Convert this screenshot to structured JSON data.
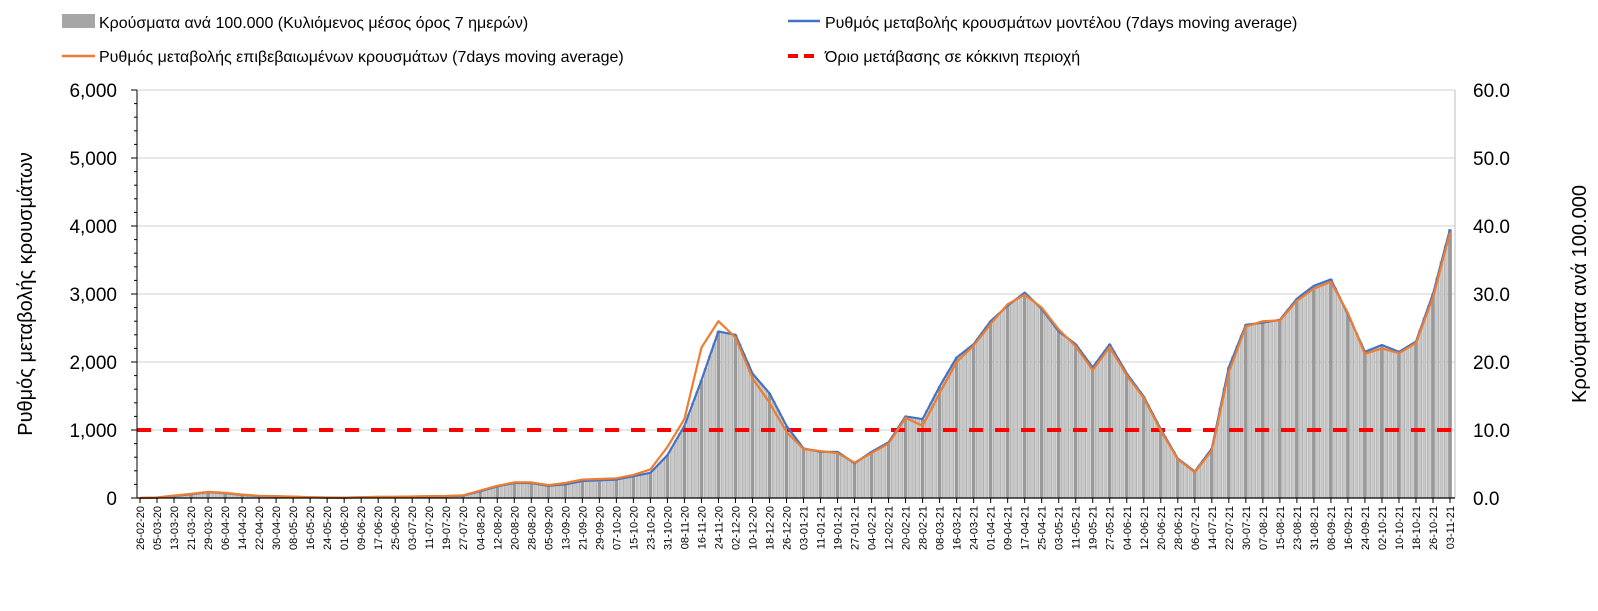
{
  "chart_data": {
    "type": "bar+line",
    "legend": {
      "placement": "top",
      "bars": "Κρούσματα ανά 100.000 (Κυλιόμενος μέσος όρος 7 ημερών)",
      "model": "Ρυθμός μεταβολής κρουσμάτων μοντέλου (7days moving average)",
      "confirmed": "Ρυθμός μεταβολής επιβεβαιωμένων κρουσμάτων (7days moving average)",
      "threshold": "Όριο μετάβασης σε κόκκινη περιοχή"
    },
    "ylabel_left": "Ρυθμός μεταβολής κρουσμάτων",
    "ylabel_right": "Κρούσματα ανά 100.000",
    "ylim_left": [
      0,
      6000
    ],
    "ylim_right": [
      0,
      60
    ],
    "yticks_left": [
      "0",
      "1,000",
      "2,000",
      "3,000",
      "4,000",
      "5,000",
      "6,000"
    ],
    "yticks_right": [
      "0.0",
      "10.0",
      "20.0",
      "30.0",
      "40.0",
      "50.0",
      "60.0"
    ],
    "threshold_value": 1000,
    "grid": true,
    "colors": {
      "bars": "#a6a6a6",
      "model": "#4472c4",
      "confirmed": "#ed7d31",
      "threshold": "#ff0000",
      "grid": "#d9d9d9"
    },
    "x": [
      "26-02-20",
      "05-03-20",
      "13-03-20",
      "21-03-20",
      "29-03-20",
      "06-04-20",
      "14-04-20",
      "22-04-20",
      "30-04-20",
      "08-05-20",
      "16-05-20",
      "24-05-20",
      "01-06-20",
      "09-06-20",
      "17-06-20",
      "25-06-20",
      "03-07-20",
      "11-07-20",
      "19-07-20",
      "27-07-20",
      "04-08-20",
      "12-08-20",
      "20-08-20",
      "28-08-20",
      "05-09-20",
      "13-09-20",
      "21-09-20",
      "29-09-20",
      "07-10-20",
      "15-10-20",
      "23-10-20",
      "31-10-20",
      "08-11-20",
      "16-11-20",
      "24-11-20",
      "02-12-20",
      "10-12-20",
      "18-12-20",
      "26-12-20",
      "03-01-21",
      "11-01-21",
      "19-01-21",
      "27-01-21",
      "04-02-21",
      "12-02-21",
      "20-02-21",
      "28-02-21",
      "08-03-21",
      "16-03-21",
      "24-03-21",
      "01-04-21",
      "09-04-21",
      "17-04-21",
      "25-04-21",
      "03-05-21",
      "11-05-21",
      "19-05-21",
      "27-05-21",
      "04-06-21",
      "12-06-21",
      "20-06-21",
      "28-06-21",
      "06-07-21",
      "14-07-21",
      "22-07-21",
      "30-07-21",
      "07-08-21",
      "15-08-21",
      "23-08-21",
      "31-08-21",
      "08-09-21",
      "16-09-21",
      "24-09-21",
      "02-10-21",
      "10-10-21",
      "18-10-21",
      "26-10-21",
      "03-11-21"
    ],
    "series": [
      {
        "name": "model",
        "axis": "left",
        "values": [
          0,
          5,
          30,
          55,
          85,
          70,
          45,
          30,
          25,
          18,
          10,
          6,
          5,
          10,
          15,
          15,
          20,
          25,
          28,
          35,
          100,
          170,
          220,
          220,
          180,
          200,
          250,
          260,
          270,
          320,
          370,
          630,
          1060,
          1730,
          2450,
          2400,
          1830,
          1540,
          1060,
          730,
          680,
          680,
          510,
          680,
          820,
          1200,
          1160,
          1640,
          2065,
          2260,
          2600,
          2830,
          3020,
          2780,
          2450,
          2260,
          1920,
          2260,
          1830,
          1490,
          1010,
          580,
          390,
          725,
          1920,
          2545,
          2580,
          2620,
          2930,
          3120,
          3215,
          2700,
          2150,
          2250,
          2150,
          2300,
          3000,
          3950
        ]
      },
      {
        "name": "confirmed",
        "axis": "left",
        "values": [
          0,
          8,
          35,
          60,
          90,
          75,
          50,
          32,
          26,
          20,
          12,
          8,
          6,
          12,
          16,
          18,
          22,
          26,
          30,
          40,
          110,
          180,
          230,
          230,
          190,
          220,
          270,
          280,
          290,
          340,
          420,
          750,
          1160,
          2210,
          2600,
          2360,
          1760,
          1400,
          970,
          720,
          690,
          660,
          520,
          660,
          800,
          1180,
          1060,
          1540,
          2000,
          2240,
          2560,
          2850,
          2990,
          2800,
          2480,
          2230,
          1880,
          2220,
          1800,
          1470,
          990,
          570,
          380,
          700,
          1850,
          2520,
          2600,
          2610,
          2900,
          3080,
          3180,
          2720,
          2120,
          2200,
          2130,
          2280,
          2950,
          3900
        ]
      },
      {
        "name": "bars",
        "axis": "right",
        "values": [
          0,
          0.1,
          0.3,
          0.6,
          0.9,
          0.7,
          0.5,
          0.3,
          0.3,
          0.2,
          0.1,
          0.1,
          0.1,
          0.1,
          0.2,
          0.2,
          0.2,
          0.3,
          0.3,
          0.4,
          1.0,
          1.7,
          2.2,
          2.2,
          1.8,
          2.0,
          2.5,
          2.6,
          2.7,
          3.2,
          3.7,
          6.3,
          10.6,
          17.3,
          24.5,
          24.0,
          18.3,
          15.4,
          10.6,
          7.3,
          6.8,
          6.8,
          5.1,
          6.8,
          8.2,
          12.0,
          11.6,
          16.4,
          20.7,
          22.6,
          26.0,
          28.3,
          30.2,
          27.8,
          24.5,
          22.6,
          19.2,
          22.6,
          18.3,
          14.9,
          10.1,
          5.8,
          3.9,
          7.3,
          19.2,
          25.5,
          25.8,
          26.2,
          29.3,
          31.2,
          32.2,
          27.0,
          21.5,
          22.5,
          21.5,
          23.0,
          30.0,
          39.5
        ]
      }
    ]
  }
}
